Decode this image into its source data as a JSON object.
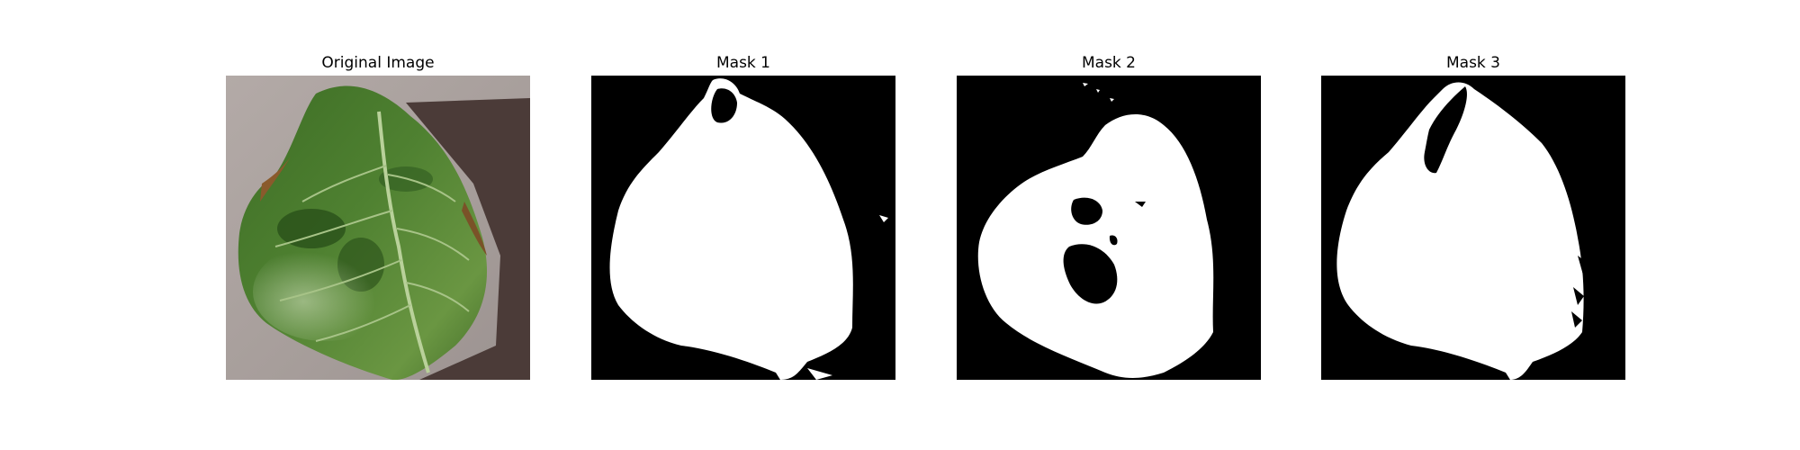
{
  "figure": {
    "panels": [
      {
        "title": "Original Image",
        "kind": "photo"
      },
      {
        "title": "Mask 1",
        "kind": "mask"
      },
      {
        "title": "Mask 2",
        "kind": "mask"
      },
      {
        "title": "Mask 3",
        "kind": "mask"
      }
    ],
    "colors": {
      "background": "#ffffff",
      "mask_background": "#000000",
      "mask_foreground": "#ffffff",
      "leaf_dark": "#2f5a1f",
      "leaf_mid": "#4d7c2e",
      "leaf_light": "#79a24c",
      "leaf_vein": "#b9d19a",
      "surface": "#a9a09d",
      "shadow": "#4b3b38"
    }
  }
}
